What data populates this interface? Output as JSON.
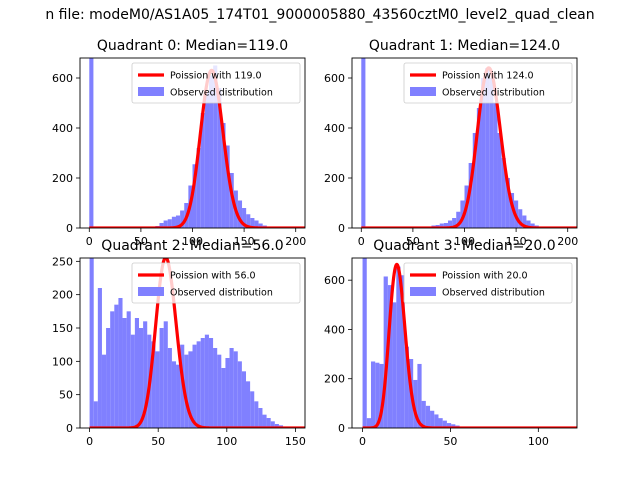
{
  "figure": {
    "suptitle": "n file: modeM0/AS1A05_174T01_9000005880_43560cztM0_level2_quad_clean"
  },
  "chart_data": [
    {
      "type": "histogram",
      "title": "Quadrant 0: Median=119.0",
      "median": 119.0,
      "xlim": [
        -9,
        209
      ],
      "ylim": [
        0,
        680
      ],
      "xticks": [
        0,
        50,
        100,
        150,
        200
      ],
      "yticks": [
        0,
        200,
        400,
        600
      ],
      "legend_position": "upper right",
      "series": [
        {
          "name": "Poission with 119.0",
          "kind": "poisson_line",
          "lambda": 119.0,
          "scale": 630,
          "color": "#ff0000"
        },
        {
          "name": "Observed distribution",
          "kind": "histogram",
          "color": "#8080ff",
          "bins": [
            [
              0,
              4,
              680
            ],
            [
              56,
              60,
              3
            ],
            [
              60,
              64,
              5
            ],
            [
              64,
              68,
              8
            ],
            [
              68,
              72,
              20
            ],
            [
              72,
              76,
              30
            ],
            [
              76,
              80,
              35
            ],
            [
              80,
              84,
              45
            ],
            [
              84,
              88,
              50
            ],
            [
              88,
              92,
              70
            ],
            [
              92,
              96,
              100
            ],
            [
              96,
              100,
              170
            ],
            [
              100,
              104,
              255
            ],
            [
              104,
              108,
              320
            ],
            [
              108,
              112,
              460
            ],
            [
              112,
              116,
              540
            ],
            [
              116,
              120,
              610
            ],
            [
              120,
              124,
              650
            ],
            [
              124,
              128,
              560
            ],
            [
              128,
              132,
              420
            ],
            [
              132,
              136,
              330
            ],
            [
              136,
              140,
              220
            ],
            [
              140,
              144,
              150
            ],
            [
              144,
              148,
              110
            ],
            [
              148,
              152,
              80
            ],
            [
              152,
              156,
              55
            ],
            [
              156,
              160,
              40
            ],
            [
              160,
              164,
              30
            ],
            [
              164,
              168,
              18
            ],
            [
              168,
              172,
              10
            ],
            [
              172,
              176,
              6
            ],
            [
              176,
              180,
              3
            ]
          ]
        }
      ]
    },
    {
      "type": "histogram",
      "title": "Quadrant 1: Median=124.0",
      "median": 124.0,
      "xlim": [
        -9,
        209
      ],
      "ylim": [
        0,
        680
      ],
      "xticks": [
        0,
        50,
        100,
        150,
        200
      ],
      "yticks": [
        0,
        200,
        400,
        600
      ],
      "legend_position": "upper right",
      "series": [
        {
          "name": "Poission with 124.0",
          "kind": "poisson_line",
          "lambda": 124.0,
          "scale": 640,
          "color": "#ff0000"
        },
        {
          "name": "Observed distribution",
          "kind": "histogram",
          "color": "#8080ff",
          "bins": [
            [
              0,
              4,
              680
            ],
            [
              60,
              64,
              3
            ],
            [
              64,
              68,
              5
            ],
            [
              68,
              72,
              10
            ],
            [
              72,
              76,
              12
            ],
            [
              76,
              80,
              18
            ],
            [
              80,
              84,
              20
            ],
            [
              84,
              88,
              30
            ],
            [
              88,
              92,
              40
            ],
            [
              92,
              96,
              65
            ],
            [
              96,
              100,
              110
            ],
            [
              100,
              104,
              170
            ],
            [
              104,
              108,
              260
            ],
            [
              108,
              112,
              380
            ],
            [
              112,
              116,
              480
            ],
            [
              116,
              120,
              600
            ],
            [
              120,
              124,
              640
            ],
            [
              124,
              128,
              600
            ],
            [
              128,
              132,
              500
            ],
            [
              132,
              136,
              380
            ],
            [
              136,
              140,
              280
            ],
            [
              140,
              144,
              200
            ],
            [
              144,
              148,
              140
            ],
            [
              148,
              152,
              110
            ],
            [
              152,
              156,
              75
            ],
            [
              156,
              160,
              50
            ],
            [
              160,
              164,
              30
            ],
            [
              164,
              168,
              18
            ],
            [
              168,
              172,
              10
            ],
            [
              172,
              176,
              6
            ],
            [
              176,
              180,
              3
            ]
          ]
        }
      ]
    },
    {
      "type": "histogram",
      "title": "Quadrant 2: Median=56.0",
      "median": 56.0,
      "xlim": [
        -7,
        157
      ],
      "ylim": [
        0,
        255
      ],
      "xticks": [
        0,
        50,
        100,
        150
      ],
      "yticks": [
        0,
        50,
        100,
        150,
        200,
        250
      ],
      "legend_position": "upper right",
      "series": [
        {
          "name": "Poission with 56.0",
          "kind": "poisson_line",
          "lambda": 56.0,
          "scale": 255,
          "color": "#ff0000"
        },
        {
          "name": "Observed distribution",
          "kind": "histogram",
          "color": "#8080ff",
          "bins": [
            [
              0,
              3,
              255
            ],
            [
              3,
              6,
              40
            ],
            [
              6,
              9,
              210
            ],
            [
              9,
              12,
              110
            ],
            [
              12,
              15,
              150
            ],
            [
              15,
              18,
              175
            ],
            [
              18,
              21,
              185
            ],
            [
              21,
              24,
              195
            ],
            [
              24,
              27,
              165
            ],
            [
              27,
              30,
              175
            ],
            [
              30,
              33,
              140
            ],
            [
              33,
              36,
              165
            ],
            [
              36,
              39,
              150
            ],
            [
              39,
              42,
              160
            ],
            [
              42,
              45,
              140
            ],
            [
              45,
              48,
              130
            ],
            [
              48,
              51,
              115
            ],
            [
              51,
              54,
              150
            ],
            [
              54,
              57,
              160
            ],
            [
              57,
              60,
              120
            ],
            [
              60,
              63,
              100
            ],
            [
              63,
              66,
              95
            ],
            [
              66,
              69,
              125
            ],
            [
              69,
              72,
              110
            ],
            [
              72,
              75,
              115
            ],
            [
              75,
              78,
              125
            ],
            [
              78,
              81,
              130
            ],
            [
              81,
              84,
              135
            ],
            [
              84,
              87,
              140
            ],
            [
              87,
              90,
              135
            ],
            [
              90,
              93,
              120
            ],
            [
              93,
              96,
              110
            ],
            [
              96,
              99,
              90
            ],
            [
              99,
              102,
              105
            ],
            [
              102,
              105,
              120
            ],
            [
              105,
              108,
              115
            ],
            [
              108,
              111,
              100
            ],
            [
              111,
              114,
              85
            ],
            [
              114,
              117,
              70
            ],
            [
              117,
              120,
              55
            ],
            [
              120,
              123,
              40
            ],
            [
              123,
              126,
              30
            ],
            [
              126,
              129,
              20
            ],
            [
              129,
              132,
              15
            ],
            [
              132,
              135,
              10
            ],
            [
              135,
              138,
              6
            ],
            [
              138,
              141,
              4
            ],
            [
              141,
              144,
              2
            ]
          ]
        }
      ]
    },
    {
      "type": "histogram",
      "title": "Quadrant 3: Median=20.0",
      "median": 20.0,
      "xlim": [
        -6,
        122
      ],
      "ylim": [
        0,
        690
      ],
      "xticks": [
        0,
        50,
        100
      ],
      "yticks": [
        0,
        200,
        400,
        600
      ],
      "legend_position": "upper right",
      "series": [
        {
          "name": "Poission with 20.0",
          "kind": "poisson_line",
          "lambda": 20.0,
          "scale": 660,
          "color": "#ff0000"
        },
        {
          "name": "Observed distribution",
          "kind": "histogram",
          "color": "#8080ff",
          "bins": [
            [
              0,
              2.4,
              690
            ],
            [
              2.4,
              4.8,
              40
            ],
            [
              4.8,
              7.2,
              270
            ],
            [
              7.2,
              9.6,
              265
            ],
            [
              9.6,
              12,
              260
            ],
            [
              12,
              14.4,
              615
            ],
            [
              14.4,
              16.8,
              580
            ],
            [
              16.8,
              19.2,
              510
            ],
            [
              19.2,
              21.6,
              655
            ],
            [
              21.6,
              24,
              620
            ],
            [
              24,
              26.4,
              330
            ],
            [
              26.4,
              28.8,
              280
            ],
            [
              28.8,
              31.2,
              195
            ],
            [
              31.2,
              33.6,
              260
            ],
            [
              33.6,
              36,
              110
            ],
            [
              36,
              38.4,
              90
            ],
            [
              38.4,
              40.8,
              70
            ],
            [
              40.8,
              43.2,
              55
            ],
            [
              43.2,
              45.6,
              40
            ],
            [
              45.6,
              48,
              30
            ],
            [
              48,
              50.4,
              20
            ],
            [
              50.4,
              52.8,
              15
            ],
            [
              52.8,
              55.2,
              10
            ],
            [
              55.2,
              57.6,
              6
            ],
            [
              57.6,
              60,
              4
            ],
            [
              60,
              64,
              3
            ],
            [
              64,
              70,
              2
            ],
            [
              70,
              80,
              1
            ]
          ]
        }
      ]
    }
  ]
}
